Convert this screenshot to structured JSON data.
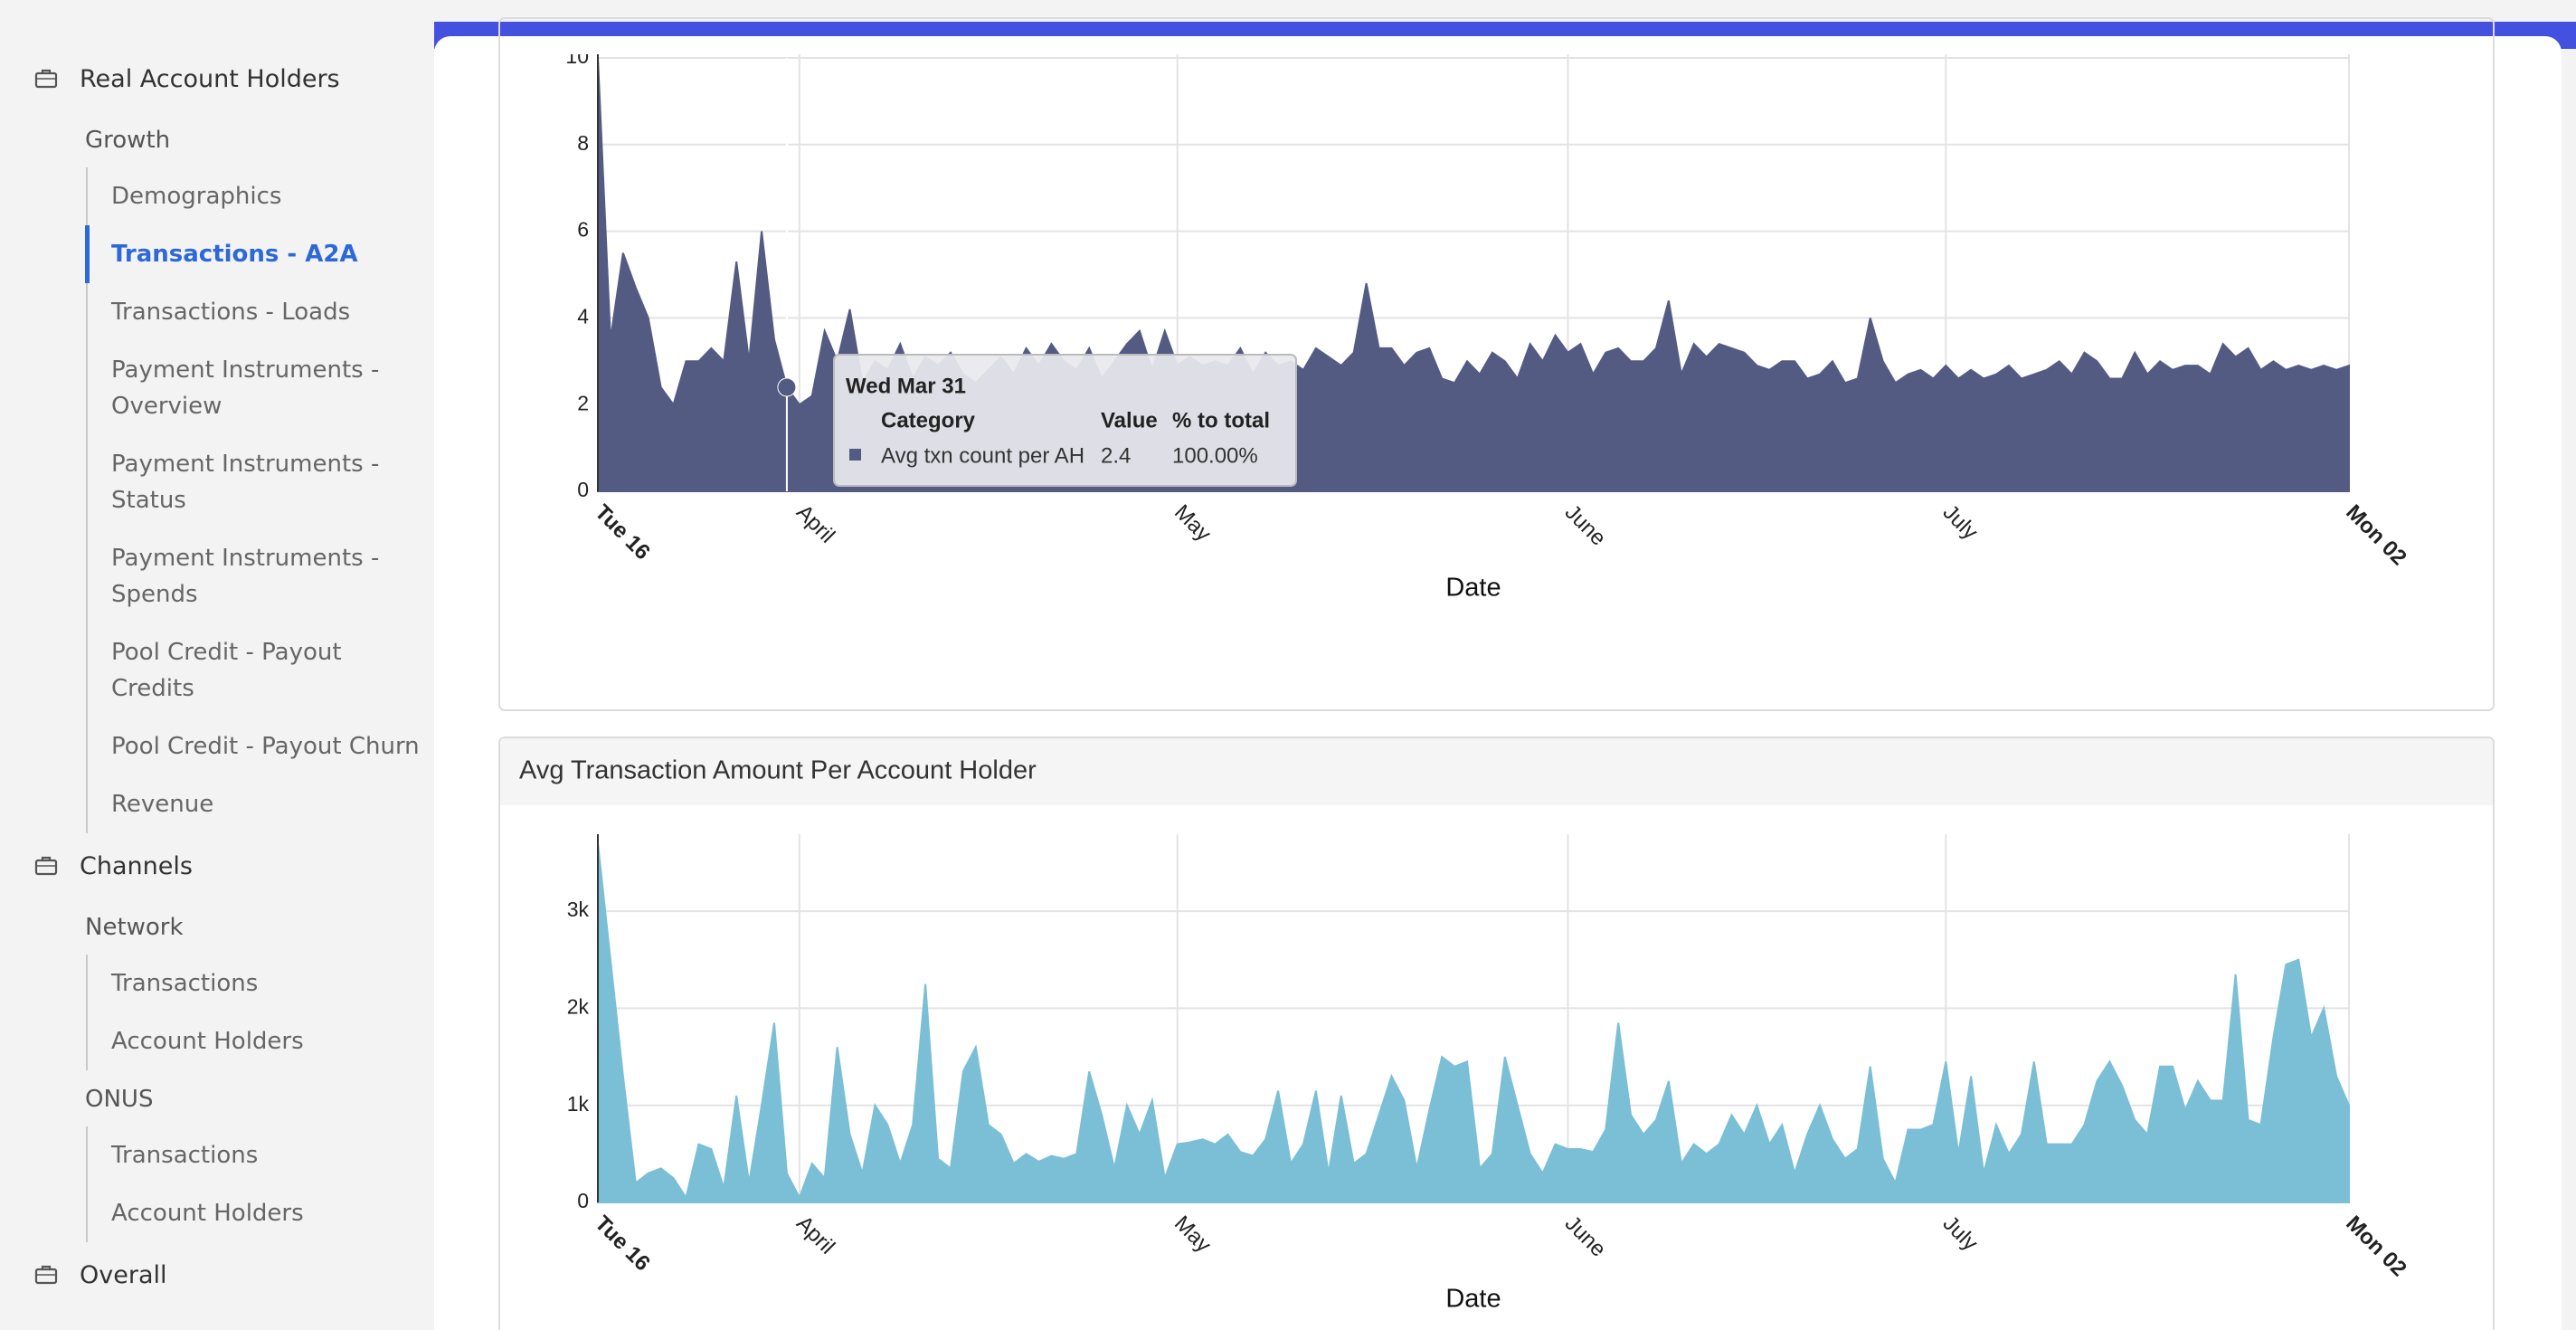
{
  "sidebar": {
    "sections": [
      {
        "label": "Real Account Holders",
        "groups": [
          {
            "label": "Growth",
            "items": [
              "Demographics",
              "Transactions - A2A",
              "Transactions - Loads",
              "Payment Instruments - Overview",
              "Payment Instruments - Status",
              "Payment Instruments - Spends",
              "Pool Credit - Payout Credits",
              "Pool Credit - Payout Churn",
              "Revenue"
            ],
            "active": 1
          }
        ]
      },
      {
        "label": "Channels",
        "groups": [
          {
            "label": "Network",
            "items": [
              "Transactions",
              "Account Holders"
            ]
          },
          {
            "label": "ONUS",
            "items": [
              "Transactions",
              "Account Holders"
            ]
          }
        ]
      },
      {
        "label": "Overall",
        "groups": []
      }
    ]
  },
  "chart_data": [
    {
      "type": "area",
      "xlabel": "Date",
      "xlim": [
        0,
        139
      ],
      "xticks": [
        {
          "value": 0,
          "label": "Tue 16"
        },
        {
          "value": 16,
          "label": "April"
        },
        {
          "value": 46,
          "label": "May"
        },
        {
          "value": 77,
          "label": "June"
        },
        {
          "value": 107,
          "label": "July"
        },
        {
          "value": 139,
          "label": "Mon 02"
        }
      ],
      "ylim": [
        0,
        10
      ],
      "yticks": [
        0,
        2,
        4,
        6,
        8,
        10
      ],
      "grid": true,
      "series": [
        {
          "name": "Avg txn count per AH",
          "color": "#545b83",
          "values": [
            10,
            3.5,
            5.5,
            4.7,
            4.0,
            2.4,
            2.0,
            3.0,
            3.0,
            3.3,
            3.0,
            5.3,
            3.0,
            6.0,
            3.5,
            2.4,
            2.0,
            2.2,
            3.7,
            3.0,
            4.2,
            2.5,
            3.0,
            2.8,
            3.4,
            2.6,
            3.1,
            2.9,
            3.2,
            2.7,
            2.5,
            2.8,
            3.1,
            2.7,
            3.3,
            2.9,
            3.4,
            3.0,
            2.8,
            3.3,
            2.6,
            3.0,
            3.4,
            3.7,
            2.8,
            3.7,
            2.9,
            3.1,
            2.9,
            3.0,
            2.9,
            3.3,
            2.7,
            3.2,
            2.9,
            3.0,
            2.8,
            3.3,
            3.1,
            2.9,
            3.2,
            4.8,
            3.3,
            3.3,
            2.9,
            3.2,
            3.3,
            2.6,
            2.5,
            3.0,
            2.7,
            3.2,
            3.0,
            2.6,
            3.4,
            3.0,
            3.6,
            3.2,
            3.4,
            2.7,
            3.2,
            3.3,
            3.0,
            3.0,
            3.3,
            4.4,
            2.7,
            3.4,
            3.1,
            3.4,
            3.3,
            3.2,
            2.9,
            2.8,
            3.0,
            3.0,
            2.6,
            2.7,
            3.0,
            2.5,
            2.6,
            4.0,
            3.0,
            2.5,
            2.7,
            2.8,
            2.6,
            2.9,
            2.6,
            2.8,
            2.6,
            2.7,
            2.9,
            2.6,
            2.7,
            2.8,
            3.0,
            2.7,
            3.2,
            3.0,
            2.6,
            2.6,
            3.2,
            2.7,
            3.0,
            2.8,
            2.9,
            2.9,
            2.7,
            3.4,
            3.1,
            3.3,
            2.8,
            3.0,
            2.8,
            2.9,
            2.8,
            2.9,
            2.8,
            2.9
          ]
        }
      ],
      "tooltip": {
        "x": 15,
        "title": "Wed Mar 31",
        "columns": [
          "Category",
          "Value",
          "% to total"
        ],
        "share": "100.00%"
      }
    },
    {
      "type": "area",
      "title": "Avg Transaction Amount Per Account Holder",
      "xlabel": "Date",
      "xlim": [
        0,
        139
      ],
      "xticks": [
        {
          "value": 0,
          "label": "Tue 16"
        },
        {
          "value": 16,
          "label": "April"
        },
        {
          "value": 46,
          "label": "May"
        },
        {
          "value": 77,
          "label": "June"
        },
        {
          "value": 107,
          "label": "July"
        },
        {
          "value": 139,
          "label": "Mon 02"
        }
      ],
      "ylim": [
        0,
        3700
      ],
      "yticks": [
        0,
        {
          "value": 1000,
          "label": "1k"
        },
        {
          "value": 2000,
          "label": "2k"
        },
        {
          "value": 3000,
          "label": "3k"
        }
      ],
      "grid": true,
      "series": [
        {
          "color": "#7abfd6",
          "values": [
            3700,
            2500,
            1300,
            200,
            300,
            350,
            250,
            50,
            600,
            550,
            150,
            1100,
            200,
            1000,
            1850,
            300,
            50,
            400,
            250,
            1600,
            700,
            300,
            1000,
            800,
            400,
            800,
            2250,
            450,
            350,
            1350,
            1600,
            800,
            700,
            400,
            500,
            420,
            480,
            450,
            500,
            1350,
            900,
            350,
            1000,
            700,
            1050,
            250,
            600,
            620,
            650,
            600,
            700,
            520,
            480,
            650,
            1150,
            400,
            600,
            1150,
            300,
            1100,
            400,
            500,
            900,
            1300,
            1050,
            350,
            950,
            1500,
            1400,
            1450,
            350,
            500,
            1500,
            1000,
            500,
            300,
            600,
            550,
            550,
            520,
            750,
            1850,
            900,
            700,
            850,
            1250,
            400,
            600,
            500,
            600,
            900,
            700,
            1000,
            600,
            800,
            300,
            700,
            1000,
            650,
            450,
            550,
            1400,
            450,
            200,
            750,
            750,
            800,
            1450,
            500,
            1300,
            300,
            800,
            500,
            700,
            1450,
            600,
            600,
            600,
            800,
            1250,
            1450,
            1200,
            850,
            700,
            1400,
            1400,
            950,
            1250,
            1050,
            1050,
            2350,
            850,
            800,
            1700,
            2450,
            2500,
            1700,
            2000,
            1300,
            1000
          ]
        }
      ]
    }
  ]
}
